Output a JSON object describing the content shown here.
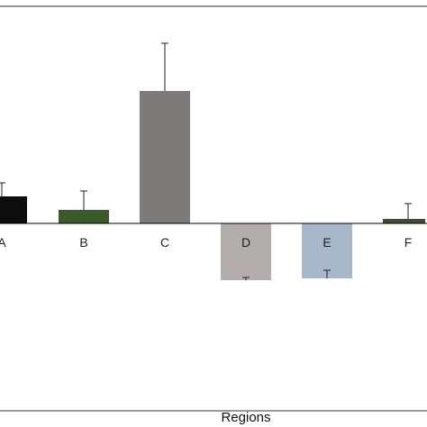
{
  "chart_data": {
    "type": "bar",
    "title": "",
    "xlabel": "Regions",
    "ylabel": "",
    "categories": [
      "A",
      "B",
      "C",
      "D",
      "E",
      "F"
    ],
    "values": [
      30,
      15,
      147,
      -63,
      -61,
      5
    ],
    "error_bars": [
      15,
      21,
      53,
      3,
      9,
      17
    ],
    "colors": [
      "#0d0d0d",
      "#3b5a2a",
      "#7e7a7a",
      "#b3adab",
      "#a9b7cb",
      "#3f4a32"
    ],
    "ylim": [
      -220,
      240
    ],
    "grid": false,
    "legend": "none"
  }
}
